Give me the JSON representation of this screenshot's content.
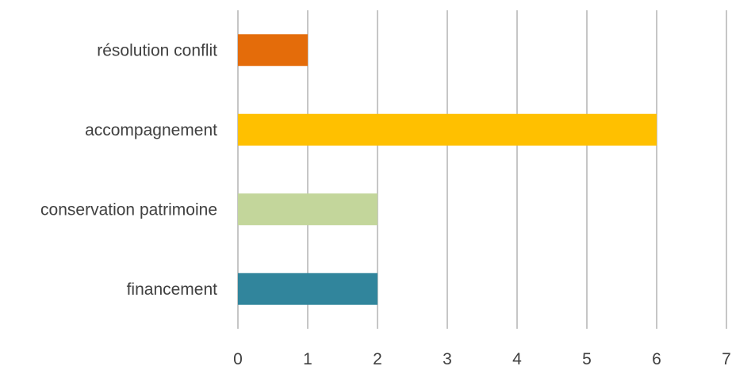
{
  "chart_data": {
    "type": "bar",
    "orientation": "horizontal",
    "categories": [
      "résolution conflit",
      "accompagnement",
      "conservation patrimoine",
      "financement"
    ],
    "values": [
      1,
      6,
      2,
      2
    ],
    "colors": [
      "#E46C0A",
      "#FFC000",
      "#C3D69B",
      "#31859C"
    ],
    "xlim": [
      0,
      7
    ],
    "x_ticks": [
      "0",
      "1",
      "2",
      "3",
      "4",
      "5",
      "6",
      "7"
    ],
    "grid": "vertical",
    "grid_color": "#8c8c8c",
    "title": "",
    "xlabel": "",
    "ylabel": "",
    "legend": "none"
  }
}
